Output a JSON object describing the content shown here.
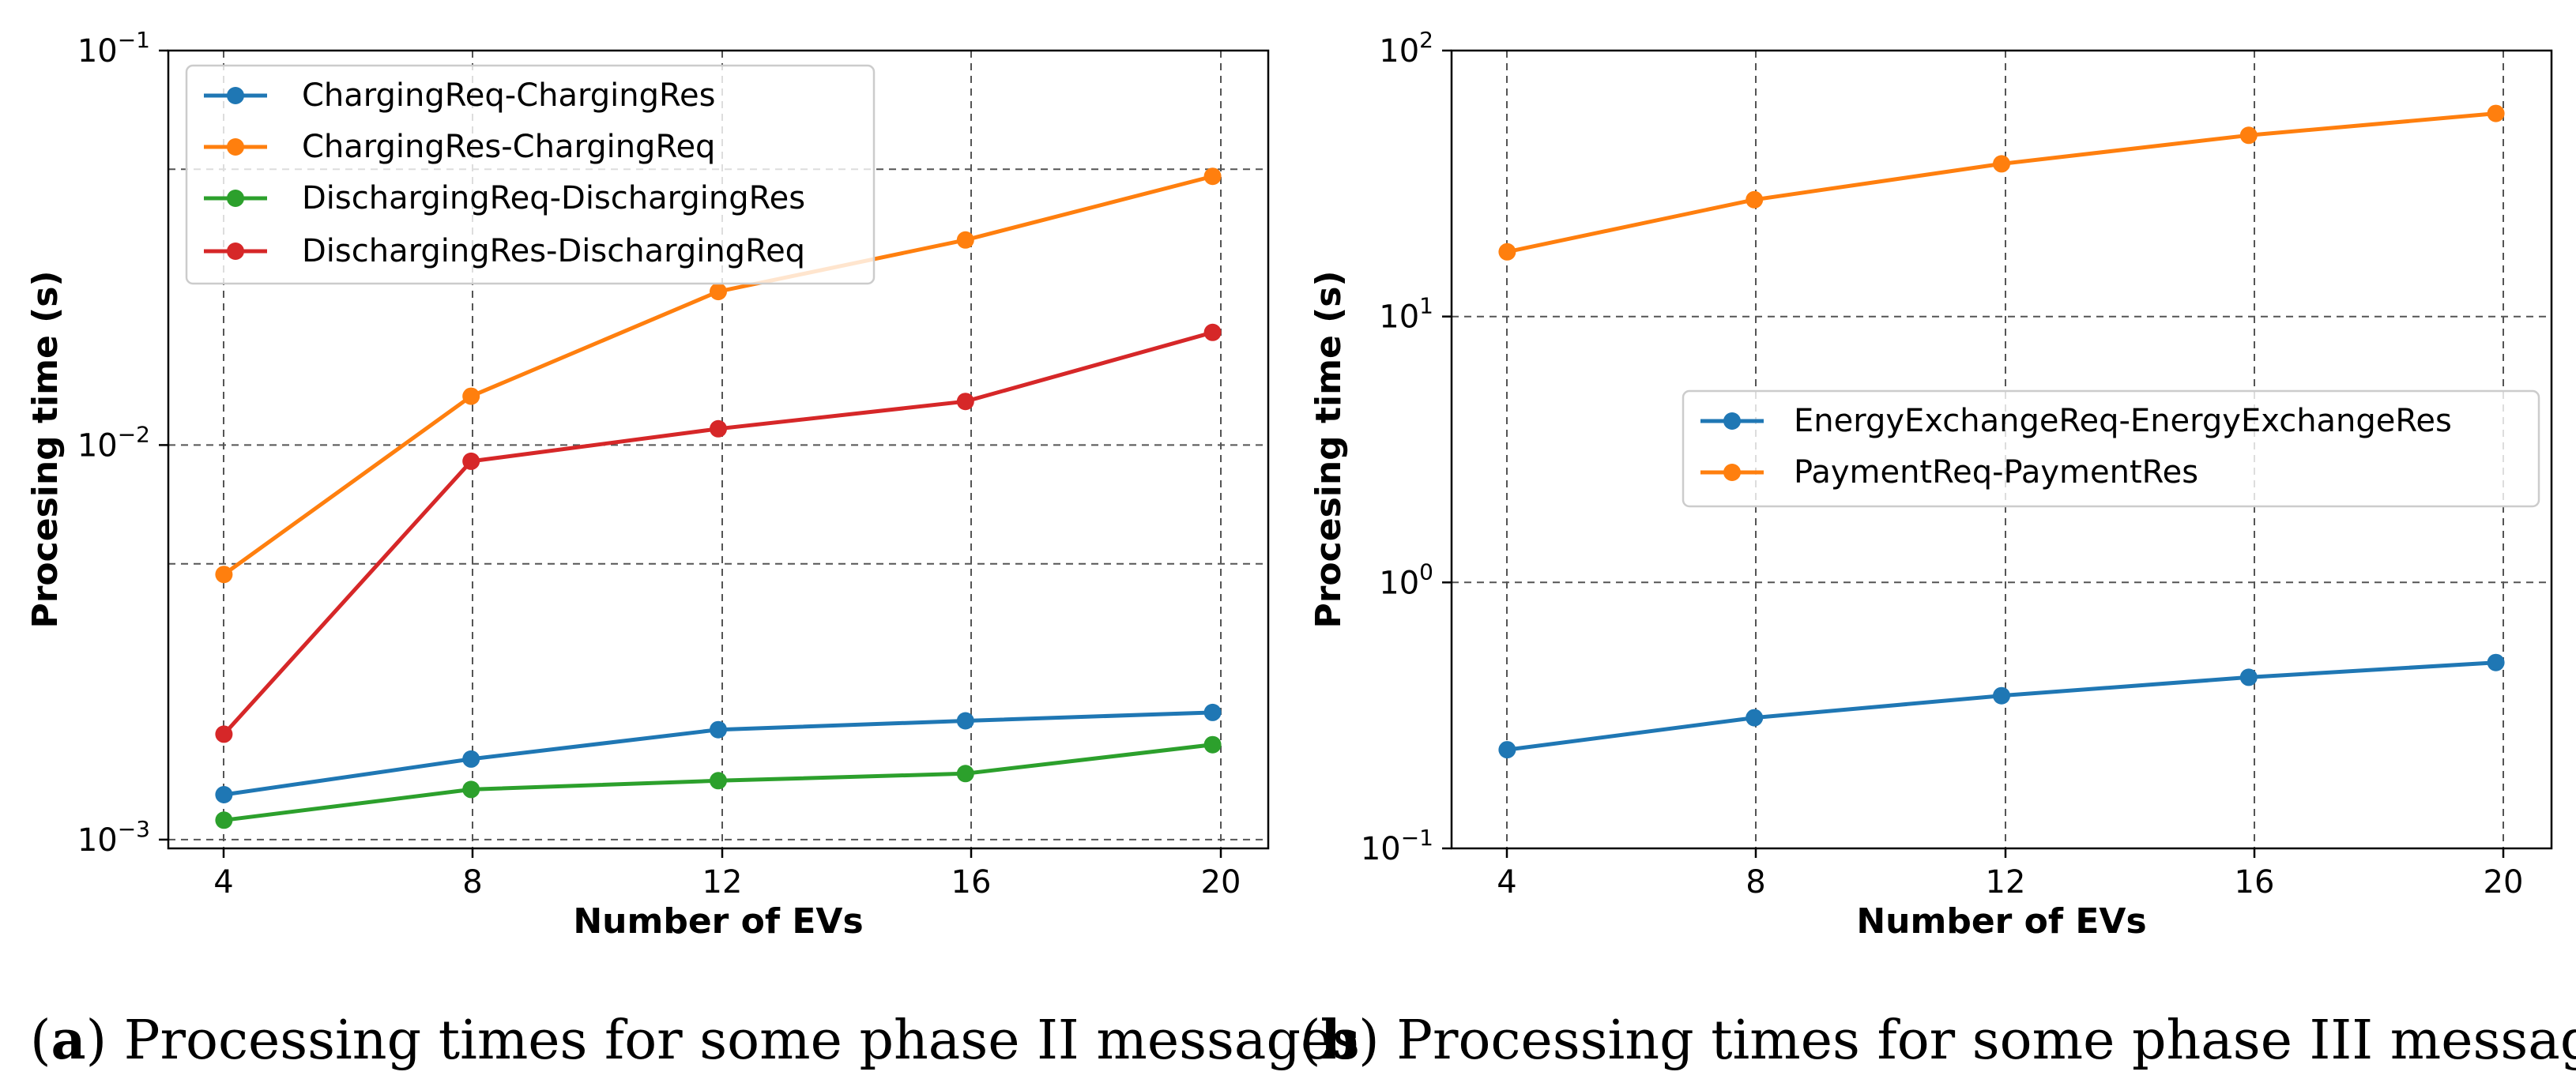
{
  "chart_data": [
    {
      "id": "a",
      "type": "line",
      "yscale": "log",
      "xlabel": "Number of EVs",
      "ylabel": "Procesing time (s)",
      "x": [
        4,
        8,
        12,
        16,
        20
      ],
      "xticks": [
        "4",
        "8",
        "12",
        "16",
        "20"
      ],
      "xlim": [
        3.1,
        20.9
      ],
      "ylim": [
        0.00095,
        0.1
      ],
      "ytick_values": [
        0.001,
        0.01,
        0.1
      ],
      "yticks": [
        {
          "base": "10",
          "exp": "−3"
        },
        {
          "base": "10",
          "exp": "−2"
        },
        {
          "base": "10",
          "exp": "−1"
        }
      ],
      "extra_gridlines": [
        0.005,
        0.05
      ],
      "legend_position": "top-left",
      "series": [
        {
          "name": "ChargingReq-ChargingRes",
          "color": "#1f77b4",
          "values": [
            0.0013,
            0.0016,
            0.0019,
            0.002,
            0.0021
          ]
        },
        {
          "name": "ChargingRes-ChargingReq",
          "color": "#ff7f0e",
          "values": [
            0.0047,
            0.0133,
            0.0245,
            0.0331,
            0.048
          ]
        },
        {
          "name": "DischargingReq-DischargingRes",
          "color": "#2ca02c",
          "values": [
            0.00112,
            0.00134,
            0.00141,
            0.00147,
            0.00174
          ]
        },
        {
          "name": "DischargingRes-DischargingReq",
          "color": "#d62728",
          "values": [
            0.00185,
            0.0091,
            0.011,
            0.0129,
            0.0193
          ]
        }
      ],
      "caption": {
        "label": "a",
        "text": ") Processing times for some phase II messages"
      }
    },
    {
      "id": "b",
      "type": "line",
      "yscale": "log",
      "xlabel": "Number of EVs",
      "ylabel": "Procesing time (s)",
      "x": [
        4,
        8,
        12,
        16,
        20
      ],
      "xticks": [
        "4",
        "8",
        "12",
        "16",
        "20"
      ],
      "xlim": [
        3.1,
        20.9
      ],
      "ylim": [
        0.1,
        100
      ],
      "ytick_values": [
        0.1,
        1,
        10,
        100
      ],
      "yticks": [
        {
          "base": "10",
          "exp": "−1"
        },
        {
          "base": "10",
          "exp": "0"
        },
        {
          "base": "10",
          "exp": "1"
        },
        {
          "base": "10",
          "exp": "2"
        }
      ],
      "extra_gridlines": [],
      "legend_position": "center-right",
      "series": [
        {
          "name": "EnergyExchangeReq-EnergyExchangeRes",
          "color": "#1f77b4",
          "values": [
            0.235,
            0.31,
            0.375,
            0.44,
            0.5
          ]
        },
        {
          "name": "PaymentReq-PaymentRes",
          "color": "#ff7f0e",
          "values": [
            17.5,
            27.5,
            37.5,
            48,
            58
          ]
        }
      ],
      "caption": {
        "label": "b",
        "text": ") Processing times for some phase III messages"
      }
    }
  ]
}
